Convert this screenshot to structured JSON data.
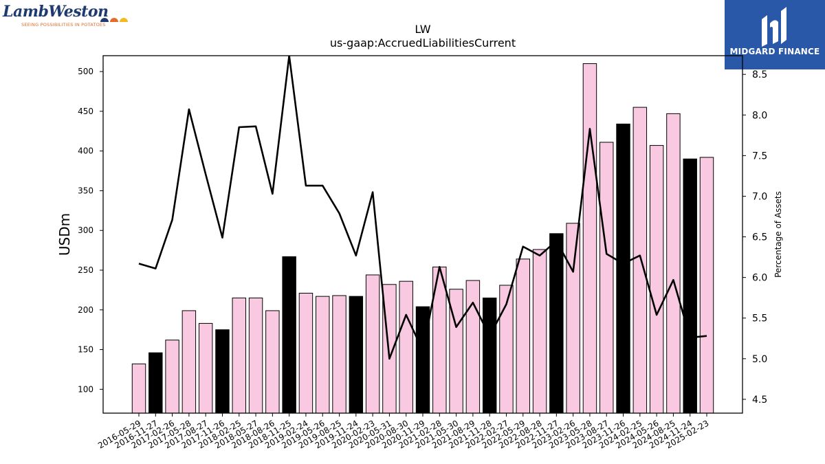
{
  "logos": {
    "left_name": "LambWeston",
    "left_tagline": "SEEING POSSIBILITIES IN POTATOES",
    "right_name": "MIDGARD FINANCE"
  },
  "chart_data": {
    "type": "bar",
    "title": "LW",
    "subtitle": "us-gaap:AccruedLiabilitiesCurrent",
    "ylabel": "USDm",
    "y2label": "Percentage of Assets",
    "ylim": [
      70,
      520
    ],
    "y2lim": [
      4.33,
      8.73
    ],
    "yticks": [
      100,
      150,
      200,
      250,
      300,
      350,
      400,
      450,
      500
    ],
    "y2ticks": [
      4.5,
      5.0,
      5.5,
      6.0,
      6.5,
      7.0,
      7.5,
      8.0,
      8.5
    ],
    "y2tick_labels": [
      "4.5",
      "5.0",
      "5.5",
      "6.0",
      "6.5",
      "7.0",
      "7.5",
      "8.0",
      "8.5"
    ],
    "categories": [
      "2016-05-29",
      "2016-11-27",
      "2017-02-26",
      "2017-05-28",
      "2017-08-27",
      "2017-11-26",
      "2018-02-25",
      "2018-05-27",
      "2018-08-26",
      "2018-11-25",
      "2019-02-24",
      "2019-05-26",
      "2019-08-25",
      "2019-11-24",
      "2020-02-23",
      "2020-05-31",
      "2020-08-30",
      "2020-11-29",
      "2021-02-28",
      "2021-05-30",
      "2021-08-29",
      "2021-11-28",
      "2022-02-27",
      "2022-05-29",
      "2022-08-28",
      "2022-11-27",
      "2023-02-26",
      "2023-05-28",
      "2023-08-27",
      "2023-11-26",
      "2024-02-25",
      "2024-05-26",
      "2024-08-25",
      "2024-11-24",
      "2025-02-23"
    ],
    "series": [
      {
        "kind": "bar",
        "values": [
          132,
          146,
          162,
          199,
          183,
          175,
          215,
          215,
          199,
          267,
          221,
          217,
          218,
          217,
          244,
          232,
          236,
          204,
          254,
          226,
          237,
          215,
          231,
          264,
          276,
          296,
          309,
          510,
          411,
          434,
          455,
          407,
          447,
          390,
          392
        ],
        "highlight": [
          false,
          true,
          false,
          false,
          false,
          true,
          false,
          false,
          false,
          true,
          false,
          false,
          false,
          true,
          false,
          false,
          false,
          true,
          false,
          false,
          false,
          true,
          false,
          false,
          false,
          true,
          false,
          false,
          false,
          true,
          false,
          false,
          false,
          true,
          false
        ]
      },
      {
        "kind": "line",
        "axis": "right",
        "values": [
          6.17,
          6.11,
          6.71,
          8.07,
          7.27,
          6.49,
          7.85,
          7.86,
          7.03,
          8.73,
          7.13,
          7.13,
          6.79,
          6.27,
          7.05,
          5.0,
          5.54,
          5.1,
          6.13,
          5.39,
          5.69,
          5.28,
          5.67,
          6.38,
          6.27,
          6.45,
          6.07,
          7.83,
          6.29,
          6.17,
          6.27,
          5.54,
          5.97,
          5.26,
          5.28
        ]
      }
    ],
    "grid": false,
    "legend": "none"
  },
  "colors": {
    "bar_default": "#f9c9e1",
    "bar_highlight": "#000000",
    "line": "#000000",
    "mf_background": "#2a58a8",
    "lw_text": "#1f3a6e",
    "lw_tagline": "#e36b2c"
  }
}
